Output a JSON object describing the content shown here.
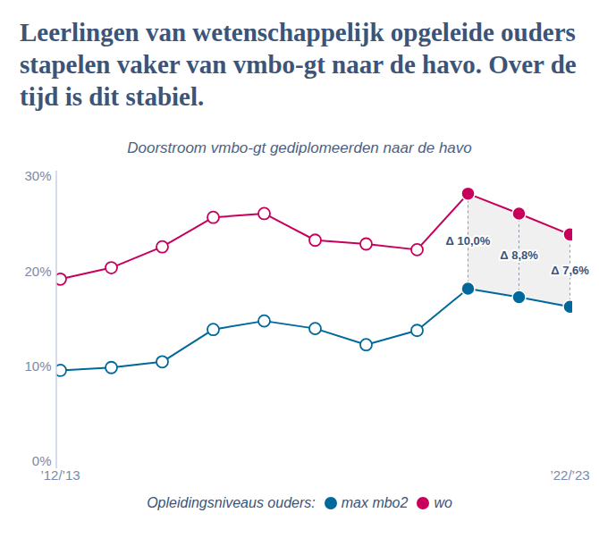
{
  "chart_data": {
    "type": "line",
    "title": "Leerlingen van wetenschappelijk opgeleide ouders stapelen vaker van vmbo-gt naar de havo. Over de tijd is dit stabiel.",
    "subtitle": "Doorstroom vmbo-gt gediplomeerden naar de havo",
    "legend_title": "Opleidingsniveaus ouders:",
    "categories": [
      "’12/’13",
      null,
      null,
      null,
      null,
      null,
      null,
      null,
      null,
      null,
      "’22/’23"
    ],
    "series": [
      {
        "name": "max mbo2",
        "color": "#00689b",
        "values": [
          9.6,
          9.9,
          10.5,
          13.9,
          14.8,
          14.0,
          12.3,
          13.8,
          18.2,
          17.3,
          16.3
        ]
      },
      {
        "name": "wo",
        "color": "#c7005b",
        "values": [
          19.2,
          20.4,
          22.6,
          25.7,
          26.1,
          23.3,
          22.9,
          22.3,
          28.2,
          26.1,
          23.9
        ]
      }
    ],
    "ylim": [
      0,
      30
    ],
    "yticks": [
      {
        "value": 0,
        "label": "0%"
      },
      {
        "value": 10,
        "label": "10%"
      },
      {
        "value": 20,
        "label": "20%"
      },
      {
        "value": 30,
        "label": "30%"
      }
    ],
    "grid": false,
    "marker": "circle",
    "legend": "bottom",
    "annotations": [
      {
        "index": 8,
        "text": "Δ 10,0%"
      },
      {
        "index": 9,
        "text": "Δ 8,8%"
      },
      {
        "index": 10,
        "text": "Δ 7,6%"
      }
    ]
  }
}
